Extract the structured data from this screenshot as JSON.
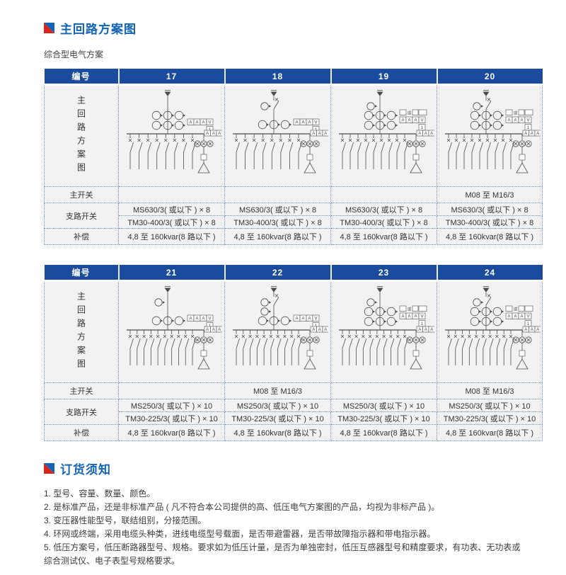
{
  "page": {
    "section1_title": "主回路方案图",
    "subtitle": "综合型电气方案",
    "accent_blue": "#1b4b9d",
    "title_blue": "#1464b4",
    "icon_red": "#d9241c",
    "dotted_border_blue": "#6b95d6",
    "body_gray": "#f2f2f3"
  },
  "tables": [
    {
      "header": [
        "编号",
        "17",
        "18",
        "19",
        "20"
      ],
      "labels": {
        "diagram": "主回路方案图",
        "main": "主开关",
        "branch": "支路开关",
        "comp": "补偿"
      },
      "main_switch": [
        "",
        "",
        "",
        "M08 至 M16/3"
      ],
      "branch_line1": [
        "MS630/3( 或以下 ) × 8",
        "MS630/3( 或以下 ) × 8",
        "MS630/3( 或以下 ) × 8",
        "MS630/3( 或以下 ) × 8"
      ],
      "branch_line2": [
        "TM30-400/3( 或以下 ) × 8",
        "TM30-400/3( 或以下 ) × 8",
        "TM30-400/3( 或以下 ) × 8",
        "TM30-400/3( 或以下 ) × 8"
      ],
      "compensation": [
        "4,8 至 160kvar(8 路以下 )",
        "4,8 至 160kvar(8 路以下 )",
        "4,8 至 160kvar(8 路以下 )",
        "4,8 至 160kvar(8 路以下 )"
      ]
    },
    {
      "header": [
        "编号",
        "21",
        "22",
        "23",
        "24"
      ],
      "labels": {
        "diagram": "主回路方案图",
        "main": "主开关",
        "branch": "支路开关",
        "comp": "补偿"
      },
      "main_switch": [
        "",
        "M08 至 M16/3",
        "",
        "M08 至 M16/3"
      ],
      "branch_line1": [
        "MS250/3( 或以下 ) × 10",
        "MS250/3( 或以下 ) × 10",
        "MS250/3( 或以下 ) × 10",
        "MS250/3( 或以下 ) × 10"
      ],
      "branch_line2": [
        "TM30-225/3( 或以下 ) × 10",
        "TM30-225/3( 或以下 ) × 10",
        "TM30-225/3( 或以下 ) × 10",
        "TM30-225/3( 或以下 ) × 10"
      ],
      "compensation": [
        "4,8 至 160kvar(8 路以下 )",
        "4,8 至 160kvar(8 路以下 )",
        "4,8 至 160kvar(8 路以下 )",
        "4,8 至 160kvar(8 路以下 )"
      ]
    }
  ],
  "diagram_labels": {
    "am": "AAAV",
    "one": "1",
    "comp": "AAA",
    "or": "或"
  },
  "diagram_configs": [
    [
      {
        "br": 8,
        "pre": 0,
        "rows": 2,
        "sw": false,
        "extra": false
      },
      {
        "br": 8,
        "pre": 1,
        "rows": 1,
        "sw": true,
        "extra": false
      },
      {
        "br": 9,
        "pre": 1,
        "rows": 2,
        "sw": false,
        "extra": true
      },
      {
        "br": 9,
        "pre": 1,
        "rows": 2,
        "sw": true,
        "extra": true
      }
    ],
    [
      {
        "br": 10,
        "pre": 1,
        "rows": 1,
        "sw": false,
        "extra": false
      },
      {
        "br": 10,
        "pre": 2,
        "rows": 1,
        "sw": true,
        "extra": false
      },
      {
        "br": 10,
        "pre": 1,
        "rows": 2,
        "sw": false,
        "extra": true
      },
      {
        "br": 10,
        "pre": 1,
        "rows": 2,
        "sw": true,
        "extra": true
      }
    ]
  ],
  "notes": {
    "title": "订货须知",
    "items": [
      "1. 型号、容量、数量、颜色。",
      "2. 是标准产品，还是非标准产品 ( 凡不符合本公司提供的高、低压电气方案图的产品，均视为非标产品 )。",
      "3. 变压器性能型号，联结组别，分接范围。",
      "4. 环网或终端，采用电缆头种类，进线电缆型号载面，是否带避雷器，是否带故障指示器和带电指示器。",
      "5. 低压方案号，低压断路器型号、规格。要求如为低压计量，是否为单独密封，低压互感器型号和精度要求，有功表、无功表或综合测试仪、电子表型号规格要求。"
    ]
  }
}
